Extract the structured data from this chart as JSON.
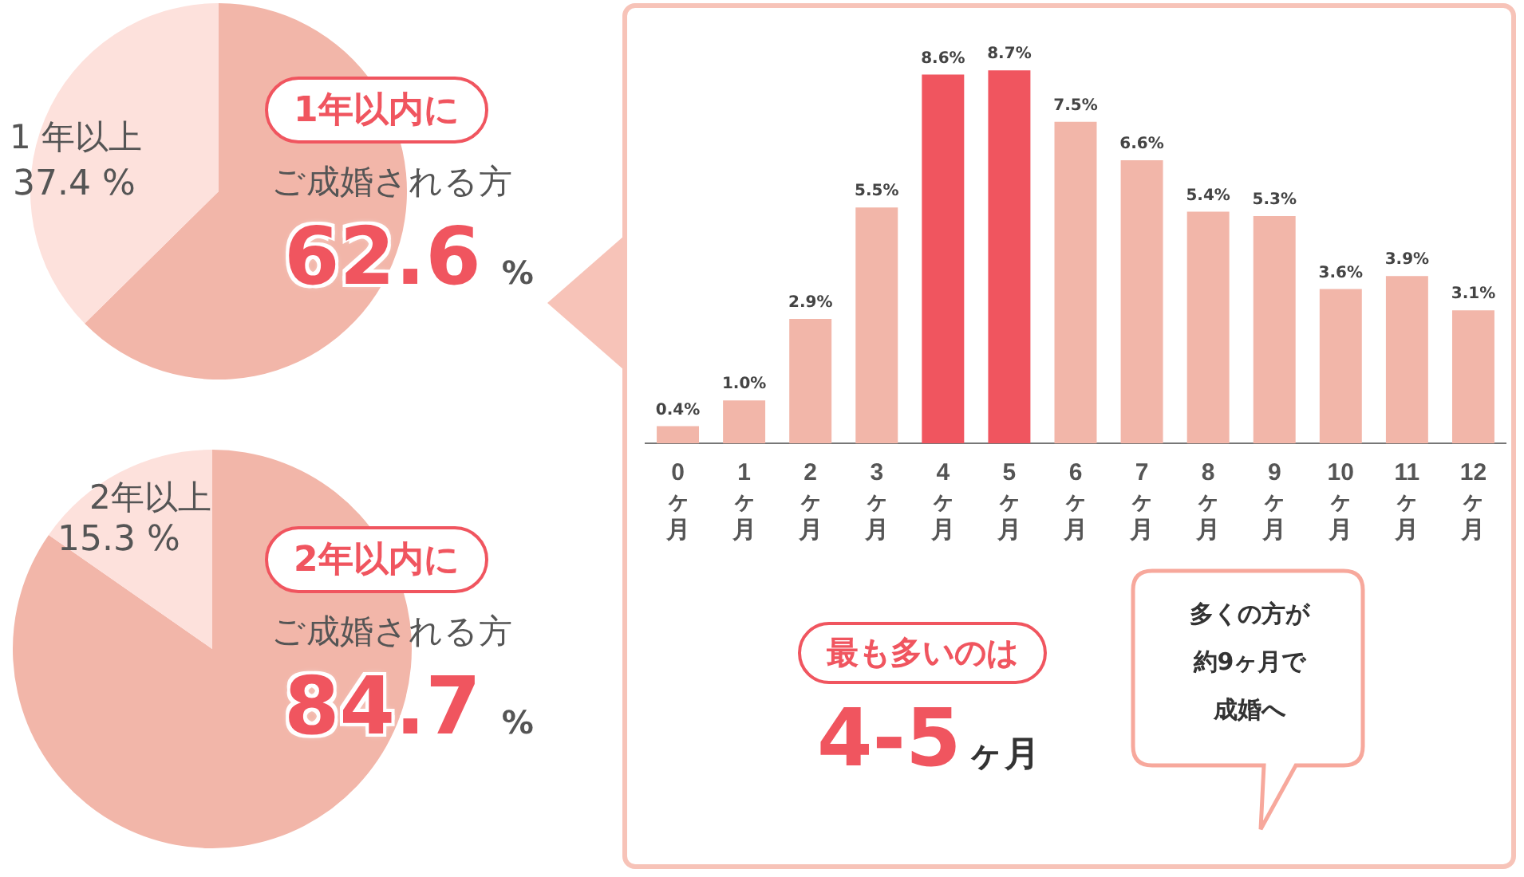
{
  "chart_data": [
    {
      "type": "pie",
      "categories": [
        "1年以内に",
        "1 年以上"
      ],
      "values": [
        62.6,
        37.4
      ],
      "colors": [
        "#f2b6a9",
        "#fde1dc"
      ],
      "value_labels": [
        "62.6 %",
        "37.4 %"
      ],
      "annotations": [
        "ご成婚される方"
      ]
    },
    {
      "type": "pie",
      "categories": [
        "2年以内に",
        "2年以上"
      ],
      "values": [
        84.7,
        15.3
      ],
      "colors": [
        "#f2b6a9",
        "#fde1dc"
      ],
      "value_labels": [
        "84.7 %",
        "15.3 %"
      ],
      "annotations": [
        "ご成婚される方"
      ]
    },
    {
      "type": "bar",
      "categories": [
        "0ヶ月",
        "1ヶ月",
        "2ヶ月",
        "3ヶ月",
        "4ヶ月",
        "5ヶ月",
        "6ヶ月",
        "7ヶ月",
        "8ヶ月",
        "9ヶ月",
        "10ヶ月",
        "11ヶ月",
        "12ヶ月"
      ],
      "values": [
        0.4,
        1.0,
        2.9,
        5.5,
        8.6,
        8.7,
        7.5,
        6.6,
        5.4,
        5.3,
        3.6,
        3.9,
        3.1
      ],
      "colors": [
        "#f2b6a9",
        "#f2b6a9",
        "#f2b6a9",
        "#f2b6a9",
        "#f0555f",
        "#f0555f",
        "#f2b6a9",
        "#f2b6a9",
        "#f2b6a9",
        "#f2b6a9",
        "#f2b6a9",
        "#f2b6a9",
        "#f2b6a9"
      ],
      "value_labels": [
        "0.4%",
        "1.0%",
        "2.9%",
        "5.5%",
        "8.6%",
        "8.7%",
        "7.5%",
        "6.6%",
        "5.4%",
        "5.3%",
        "3.6%",
        "3.9%",
        "3.1%"
      ],
      "annotations": [
        "最も多いのは",
        "4-5ヶ月",
        "多くの方が",
        "約9ヶ月で",
        "成婚へ"
      ]
    }
  ]
}
